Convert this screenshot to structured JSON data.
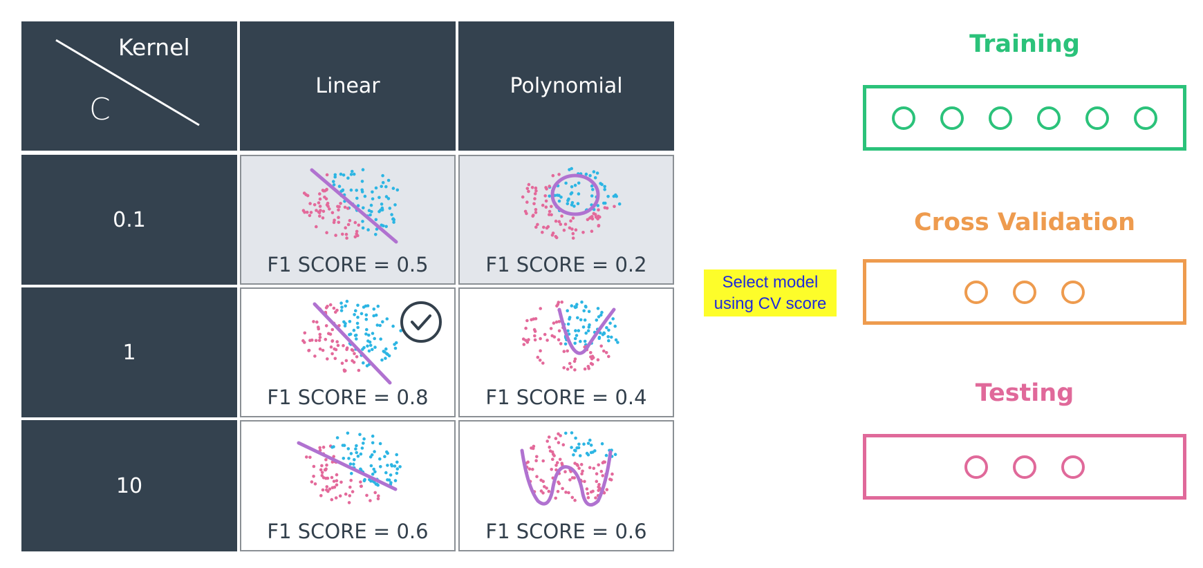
{
  "table": {
    "corner_top": "Kernel",
    "corner_bottom": "C",
    "columns": [
      "Linear",
      "Polynomial"
    ],
    "rows": [
      {
        "c": "0.1",
        "cells": [
          "F1 SCORE = 0.5",
          "F1 SCORE = 0.2"
        ]
      },
      {
        "c": "1",
        "cells": [
          "F1 SCORE = 0.8",
          "F1 SCORE = 0.4"
        ]
      },
      {
        "c": "10",
        "cells": [
          "F1 SCORE = 0.6",
          "F1 SCORE = 0.6"
        ]
      }
    ],
    "selected_icon": "check-circle-icon"
  },
  "note": {
    "line1": "Select model",
    "line2": "using CV score"
  },
  "splits": [
    {
      "title": "Training",
      "color": "#2bc27a",
      "circles": 6
    },
    {
      "title": "Cross Validation",
      "color": "#ee9b4e",
      "circles": 3
    },
    {
      "title": "Testing",
      "color": "#e0699a",
      "circles": 3
    }
  ],
  "colors": {
    "dark": "#34424f",
    "pink": "#e3699a",
    "blue": "#2cb5e3",
    "curve": "#b072d0"
  }
}
